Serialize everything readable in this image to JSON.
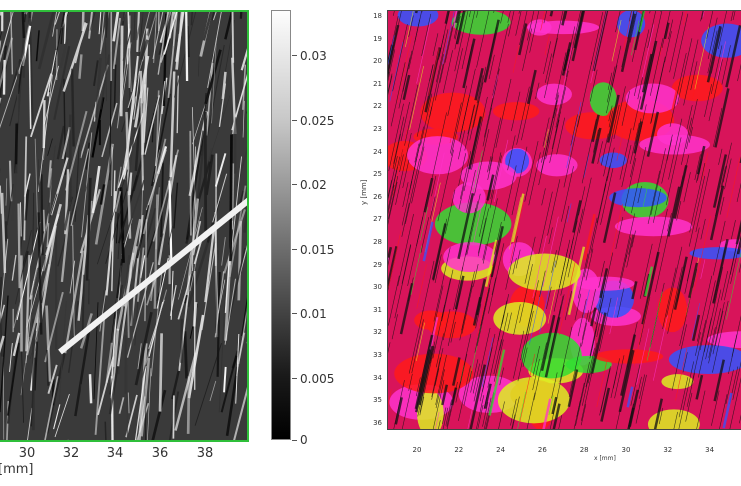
{
  "left_panel": {
    "x_ticks": [
      "30",
      "32",
      "34",
      "36",
      "38"
    ],
    "x_unit": "[mm]",
    "frame_color": "#2fbf3a"
  },
  "colorbar": {
    "labels": [
      "0.03",
      "0.025",
      "0.02",
      "0.015",
      "0.01",
      "0.005",
      "0"
    ],
    "min": 0,
    "max": 0.033
  },
  "right_panel": {
    "y_ticks": [
      "18",
      "19",
      "20",
      "21",
      "22",
      "23",
      "24",
      "25",
      "26",
      "27",
      "28",
      "29",
      "30",
      "31",
      "32",
      "33",
      "34",
      "35",
      "36"
    ],
    "y_unit": "y [mm]",
    "x_ticks": [
      "20",
      "22",
      "24",
      "26",
      "28",
      "30",
      "32",
      "34"
    ],
    "x_unit": "x [mm]",
    "colors": {
      "base": "#d8145a",
      "red": "#ff1a1a",
      "magenta": "#ff33cc",
      "green": "#33dd33",
      "blue": "#3355ff",
      "yellow": "#ddee22"
    }
  }
}
